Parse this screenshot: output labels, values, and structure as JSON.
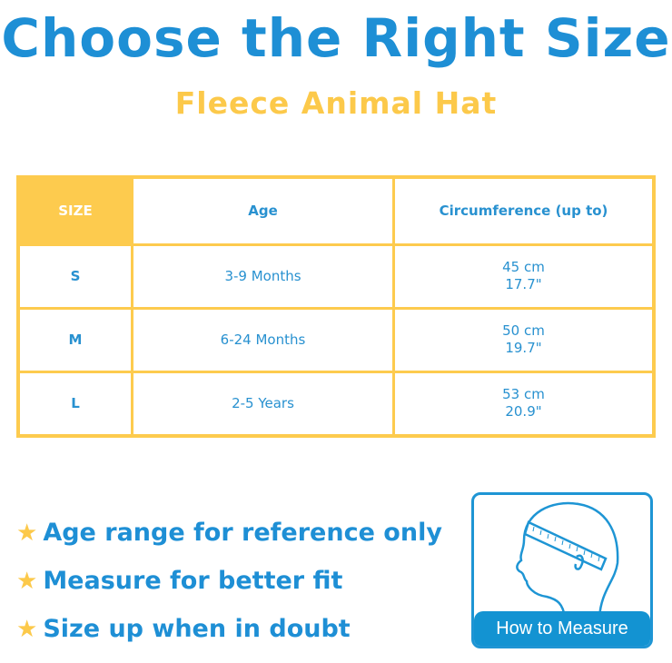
{
  "title": "Choose the Right Size",
  "subtitle": "Fleece Animal Hat",
  "table": {
    "headers": [
      "SIZE",
      "Age",
      "Circumference (up to)"
    ],
    "rows": [
      {
        "size": "S",
        "age": "3-9 Months",
        "cm": "45 cm",
        "in": "17.7\""
      },
      {
        "size": "M",
        "age": "6-24 Months",
        "cm": "50 cm",
        "in": "19.7\""
      },
      {
        "size": "L",
        "age": "2-5 Years",
        "cm": "53 cm",
        "in": "20.9\""
      }
    ]
  },
  "bullets": [
    "Age range for reference only",
    "Measure for better fit",
    "Size up when in doubt"
  ],
  "how_to_measure": {
    "label": "How to Measure",
    "icon": "head-measuring-tape-icon"
  },
  "colors": {
    "blue": "#1e8fd5",
    "yellow": "#fdcb4e"
  }
}
